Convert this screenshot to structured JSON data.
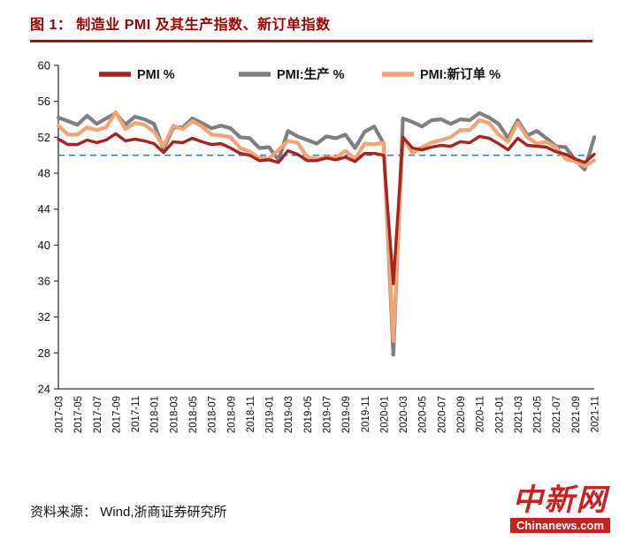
{
  "header": {
    "title": "图 1： 制造业 PMI 及其生产指数、新订单指数"
  },
  "footer": {
    "source": "资料来源： Wind,浙商证券研究所",
    "logo_text": "中新网",
    "logo_domain": "Chinanews.com"
  },
  "colors": {
    "pmi": "#a42420",
    "production": "#7f7f7f",
    "new_orders": "#f3a376",
    "reference": "#2f7fc1",
    "title": "#a00000",
    "accent_underline": "#c00000",
    "logo_red": "#cc1f1f",
    "axis": "#333333",
    "tick_text": "#111111"
  },
  "chart_data": {
    "type": "line",
    "title": "制造业 PMI 及其生产指数、新订单指数",
    "xlabel": "",
    "ylabel": "",
    "ylim": [
      24,
      60
    ],
    "yticks": [
      24,
      28,
      32,
      36,
      40,
      44,
      48,
      52,
      56,
      60
    ],
    "x_tick_every": 2,
    "reference_line": 50,
    "grid": false,
    "legend_position": "top",
    "x": [
      "2017-03",
      "2017-04",
      "2017-05",
      "2017-06",
      "2017-07",
      "2017-08",
      "2017-09",
      "2017-10",
      "2017-11",
      "2017-12",
      "2018-01",
      "2018-02",
      "2018-03",
      "2018-04",
      "2018-05",
      "2018-06",
      "2018-07",
      "2018-08",
      "2018-09",
      "2018-10",
      "2018-11",
      "2018-12",
      "2019-01",
      "2019-02",
      "2019-03",
      "2019-04",
      "2019-05",
      "2019-06",
      "2019-07",
      "2019-08",
      "2019-09",
      "2019-10",
      "2019-11",
      "2019-12",
      "2020-01",
      "2020-02",
      "2020-03",
      "2020-04",
      "2020-05",
      "2020-06",
      "2020-07",
      "2020-08",
      "2020-09",
      "2020-10",
      "2020-11",
      "2020-12",
      "2021-01",
      "2021-02",
      "2021-03",
      "2021-04",
      "2021-05",
      "2021-06",
      "2021-07",
      "2021-08",
      "2021-09",
      "2021-10",
      "2021-11"
    ],
    "series": [
      {
        "name": "PMI %",
        "color_key": "pmi",
        "values": [
          51.8,
          51.2,
          51.2,
          51.7,
          51.4,
          51.7,
          52.4,
          51.6,
          51.8,
          51.6,
          51.3,
          50.3,
          51.5,
          51.4,
          51.9,
          51.5,
          51.2,
          51.3,
          50.8,
          50.2,
          50.0,
          49.4,
          49.5,
          49.2,
          50.5,
          50.1,
          49.4,
          49.4,
          49.7,
          49.5,
          49.8,
          49.3,
          50.2,
          50.2,
          50.0,
          35.7,
          52.0,
          50.8,
          50.6,
          50.9,
          51.1,
          51.0,
          51.5,
          51.4,
          52.1,
          51.9,
          51.3,
          50.6,
          51.9,
          51.1,
          51.0,
          50.9,
          50.4,
          50.1,
          49.6,
          49.2,
          50.1
        ]
      },
      {
        "name": "PMI:生产 %",
        "color_key": "production",
        "values": [
          54.2,
          53.8,
          53.4,
          54.4,
          53.5,
          54.1,
          54.7,
          53.4,
          54.3,
          54.0,
          53.5,
          50.7,
          53.1,
          53.1,
          54.1,
          53.6,
          53.0,
          53.3,
          53.0,
          52.0,
          51.9,
          50.8,
          50.9,
          49.5,
          52.7,
          52.1,
          51.7,
          51.3,
          52.1,
          51.9,
          52.3,
          50.8,
          52.6,
          53.2,
          51.3,
          27.8,
          54.1,
          53.7,
          53.2,
          53.9,
          54.0,
          53.5,
          54.0,
          53.9,
          54.7,
          54.2,
          53.5,
          51.9,
          53.9,
          52.2,
          52.7,
          51.9,
          51.0,
          50.9,
          49.5,
          48.4,
          52.0
        ]
      },
      {
        "name": "PMI:新订单 %",
        "color_key": "new_orders",
        "values": [
          53.3,
          52.3,
          52.3,
          53.1,
          52.8,
          53.1,
          54.8,
          52.9,
          53.6,
          53.4,
          52.6,
          51.0,
          53.3,
          52.9,
          53.8,
          53.2,
          52.3,
          52.2,
          52.0,
          50.8,
          50.4,
          49.7,
          49.6,
          50.6,
          51.6,
          51.4,
          49.8,
          49.6,
          49.8,
          49.7,
          50.5,
          49.6,
          51.3,
          51.2,
          51.4,
          29.3,
          52.0,
          50.2,
          50.9,
          51.4,
          51.7,
          52.0,
          52.8,
          52.8,
          53.9,
          53.6,
          52.3,
          51.5,
          53.6,
          52.0,
          51.3,
          51.5,
          50.9,
          49.6,
          49.3,
          48.8,
          49.4
        ]
      }
    ]
  }
}
